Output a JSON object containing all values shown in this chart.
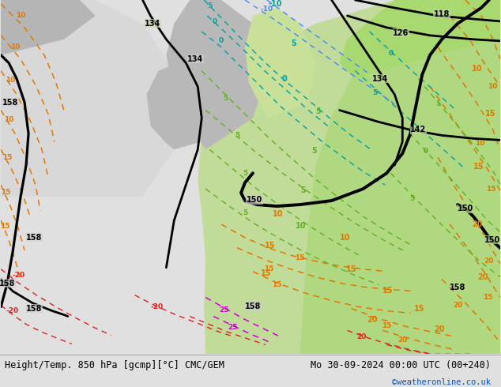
{
  "title_left": "Height/Temp. 850 hPa [gcmp][°C] CMC/GEM",
  "title_right": "Mo 30-09-2024 00:00 UTC (00+240)",
  "credit": "©weatheronline.co.uk",
  "bg_color": "#e0e0e0",
  "caption_bg": "#e8e8e8",
  "figsize": [
    6.34,
    4.9
  ],
  "dpi": 100,
  "caption_fontsize": 8.5,
  "credit_fontsize": 7.5,
  "credit_color": "#0055cc"
}
